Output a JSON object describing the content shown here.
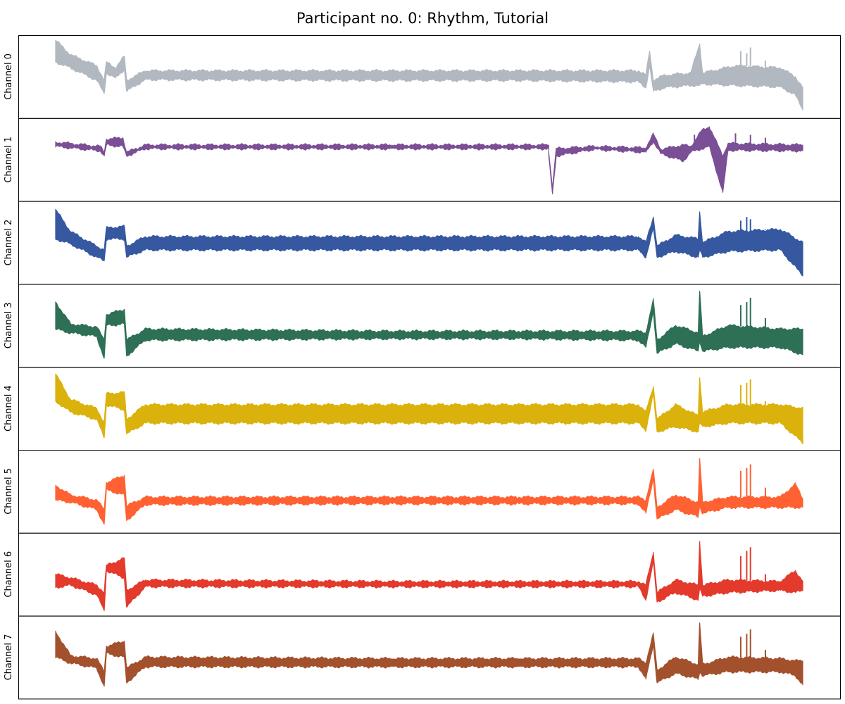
{
  "title": "Participant no. 0: Rhythm, Tutorial",
  "chart_data": {
    "type": "line",
    "title": "Participant no. 0: Rhythm, Tutorial",
    "layout": "8 vertically stacked panels, shared x axis, no ticks, no grid, no legend",
    "grid": false,
    "xlim": [
      0,
      1
    ],
    "series": [
      {
        "name": "Channel 0",
        "color": "#b2b8c0",
        "band": [
          [
            0.0,
            0.7,
            1.0
          ],
          [
            0.02,
            0.62,
            0.8
          ],
          [
            0.055,
            0.45,
            0.65
          ],
          [
            0.065,
            0.27,
            0.45
          ],
          [
            0.068,
            0.55,
            0.7
          ],
          [
            0.08,
            0.48,
            0.62
          ],
          [
            0.092,
            0.6,
            0.78
          ],
          [
            0.095,
            0.3,
            0.45
          ],
          [
            0.12,
            0.46,
            0.58
          ],
          [
            0.45,
            0.45,
            0.58
          ],
          [
            0.62,
            0.45,
            0.58
          ],
          [
            0.78,
            0.43,
            0.58
          ],
          [
            0.79,
            0.35,
            0.52
          ],
          [
            0.795,
            0.65,
            0.85
          ],
          [
            0.8,
            0.3,
            0.45
          ],
          [
            0.815,
            0.35,
            0.52
          ],
          [
            0.85,
            0.38,
            0.55
          ],
          [
            0.862,
            0.38,
            0.95
          ],
          [
            0.866,
            0.4,
            0.55
          ],
          [
            0.91,
            0.38,
            0.65
          ],
          [
            0.97,
            0.36,
            0.62
          ],
          [
            0.99,
            0.25,
            0.5
          ],
          [
            1.0,
            0.05,
            0.35
          ]
        ],
        "spikes": [
          [
            0.917,
            0.85
          ],
          [
            0.925,
            0.82
          ],
          [
            0.93,
            0.9
          ],
          [
            0.95,
            0.72
          ]
        ]
      },
      {
        "name": "Channel 1",
        "color": "#7b4f95",
        "band": [
          [
            0.0,
            0.68,
            0.74
          ],
          [
            0.06,
            0.62,
            0.68
          ],
          [
            0.065,
            0.55,
            0.6
          ],
          [
            0.068,
            0.7,
            0.78
          ],
          [
            0.09,
            0.68,
            0.8
          ],
          [
            0.095,
            0.55,
            0.6
          ],
          [
            0.12,
            0.65,
            0.7
          ],
          [
            0.45,
            0.65,
            0.7
          ],
          [
            0.66,
            0.65,
            0.7
          ],
          [
            0.66,
            0.55,
            0.6
          ],
          [
            0.665,
            0.03,
            0.12
          ],
          [
            0.67,
            0.55,
            0.65
          ],
          [
            0.72,
            0.64,
            0.68
          ],
          [
            0.79,
            0.6,
            0.66
          ],
          [
            0.8,
            0.75,
            0.85
          ],
          [
            0.81,
            0.58,
            0.64
          ],
          [
            0.84,
            0.48,
            0.7
          ],
          [
            0.85,
            0.6,
            0.68
          ],
          [
            0.865,
            0.65,
            0.9
          ],
          [
            0.875,
            0.68,
            0.95
          ],
          [
            0.893,
            0.05,
            0.55
          ],
          [
            0.9,
            0.63,
            0.72
          ],
          [
            1.0,
            0.62,
            0.7
          ]
        ],
        "spikes": [
          [
            0.855,
            0.84
          ],
          [
            0.91,
            0.86
          ],
          [
            0.93,
            0.84
          ],
          [
            0.95,
            0.8
          ]
        ]
      },
      {
        "name": "Channel 2",
        "color": "#3558a0",
        "band": [
          [
            0.0,
            0.55,
            0.95
          ],
          [
            0.02,
            0.48,
            0.65
          ],
          [
            0.055,
            0.3,
            0.45
          ],
          [
            0.065,
            0.25,
            0.4
          ],
          [
            0.068,
            0.55,
            0.7
          ],
          [
            0.092,
            0.55,
            0.72
          ],
          [
            0.095,
            0.3,
            0.45
          ],
          [
            0.12,
            0.4,
            0.58
          ],
          [
            0.62,
            0.4,
            0.58
          ],
          [
            0.78,
            0.4,
            0.58
          ],
          [
            0.79,
            0.3,
            0.5
          ],
          [
            0.8,
            0.7,
            0.85
          ],
          [
            0.805,
            0.3,
            0.45
          ],
          [
            0.83,
            0.38,
            0.6
          ],
          [
            0.86,
            0.3,
            0.55
          ],
          [
            0.862,
            0.4,
            0.92
          ],
          [
            0.866,
            0.3,
            0.5
          ],
          [
            0.9,
            0.38,
            0.65
          ],
          [
            0.97,
            0.4,
            0.68
          ],
          [
            1.0,
            0.05,
            0.5
          ]
        ],
        "spikes": [
          [
            0.917,
            0.8
          ],
          [
            0.925,
            0.85
          ],
          [
            0.93,
            0.82
          ],
          [
            0.95,
            0.68
          ]
        ]
      },
      {
        "name": "Channel 3",
        "color": "#2e7055",
        "band": [
          [
            0.0,
            0.45,
            0.82
          ],
          [
            0.02,
            0.4,
            0.52
          ],
          [
            0.055,
            0.35,
            0.48
          ],
          [
            0.065,
            0.05,
            0.3
          ],
          [
            0.068,
            0.5,
            0.65
          ],
          [
            0.092,
            0.52,
            0.72
          ],
          [
            0.095,
            0.08,
            0.3
          ],
          [
            0.12,
            0.3,
            0.45
          ],
          [
            0.45,
            0.32,
            0.42
          ],
          [
            0.62,
            0.32,
            0.42
          ],
          [
            0.78,
            0.3,
            0.42
          ],
          [
            0.79,
            0.2,
            0.4
          ],
          [
            0.8,
            0.7,
            0.85
          ],
          [
            0.805,
            0.12,
            0.3
          ],
          [
            0.83,
            0.25,
            0.5
          ],
          [
            0.86,
            0.15,
            0.4
          ],
          [
            0.862,
            0.3,
            0.97
          ],
          [
            0.866,
            0.15,
            0.35
          ],
          [
            0.9,
            0.2,
            0.5
          ],
          [
            0.97,
            0.2,
            0.45
          ],
          [
            1.0,
            0.1,
            0.45
          ]
        ],
        "spikes": [
          [
            0.917,
            0.78
          ],
          [
            0.925,
            0.82
          ],
          [
            0.93,
            0.88
          ],
          [
            0.95,
            0.6
          ]
        ]
      },
      {
        "name": "Channel 4",
        "color": "#dbb10c",
        "band": [
          [
            0.0,
            0.6,
            0.97
          ],
          [
            0.02,
            0.45,
            0.62
          ],
          [
            0.055,
            0.35,
            0.5
          ],
          [
            0.065,
            0.1,
            0.3
          ],
          [
            0.068,
            0.55,
            0.7
          ],
          [
            0.092,
            0.48,
            0.72
          ],
          [
            0.095,
            0.15,
            0.35
          ],
          [
            0.12,
            0.3,
            0.55
          ],
          [
            0.62,
            0.3,
            0.55
          ],
          [
            0.78,
            0.3,
            0.55
          ],
          [
            0.79,
            0.2,
            0.45
          ],
          [
            0.8,
            0.7,
            0.8
          ],
          [
            0.805,
            0.18,
            0.35
          ],
          [
            0.83,
            0.25,
            0.55
          ],
          [
            0.86,
            0.18,
            0.4
          ],
          [
            0.862,
            0.3,
            0.92
          ],
          [
            0.866,
            0.25,
            0.45
          ],
          [
            0.9,
            0.3,
            0.55
          ],
          [
            0.97,
            0.3,
            0.55
          ],
          [
            1.0,
            0.03,
            0.5
          ]
        ],
        "spikes": [
          [
            0.917,
            0.82
          ],
          [
            0.925,
            0.85
          ],
          [
            0.93,
            0.9
          ],
          [
            0.95,
            0.6
          ]
        ]
      },
      {
        "name": "Channel 5",
        "color": "#ff6133",
        "band": [
          [
            0.0,
            0.38,
            0.58
          ],
          [
            0.02,
            0.35,
            0.45
          ],
          [
            0.055,
            0.25,
            0.38
          ],
          [
            0.065,
            0.05,
            0.25
          ],
          [
            0.068,
            0.52,
            0.62
          ],
          [
            0.092,
            0.45,
            0.72
          ],
          [
            0.095,
            0.1,
            0.3
          ],
          [
            0.12,
            0.32,
            0.42
          ],
          [
            0.45,
            0.33,
            0.42
          ],
          [
            0.62,
            0.33,
            0.42
          ],
          [
            0.78,
            0.33,
            0.42
          ],
          [
            0.79,
            0.2,
            0.38
          ],
          [
            0.8,
            0.68,
            0.8
          ],
          [
            0.805,
            0.12,
            0.28
          ],
          [
            0.83,
            0.25,
            0.45
          ],
          [
            0.86,
            0.15,
            0.35
          ],
          [
            0.862,
            0.3,
            0.95
          ],
          [
            0.866,
            0.2,
            0.35
          ],
          [
            0.9,
            0.28,
            0.42
          ],
          [
            0.97,
            0.28,
            0.42
          ],
          [
            0.99,
            0.28,
            0.6
          ],
          [
            1.0,
            0.28,
            0.4
          ]
        ],
        "spikes": [
          [
            0.917,
            0.78
          ],
          [
            0.925,
            0.82
          ],
          [
            0.93,
            0.87
          ],
          [
            0.95,
            0.55
          ]
        ]
      },
      {
        "name": "Channel 6",
        "color": "#e33a2c",
        "band": [
          [
            0.0,
            0.32,
            0.5
          ],
          [
            0.02,
            0.35,
            0.45
          ],
          [
            0.055,
            0.22,
            0.35
          ],
          [
            0.065,
            0.0,
            0.25
          ],
          [
            0.068,
            0.55,
            0.62
          ],
          [
            0.092,
            0.45,
            0.72
          ],
          [
            0.095,
            0.05,
            0.28
          ],
          [
            0.12,
            0.33,
            0.42
          ],
          [
            0.45,
            0.33,
            0.4
          ],
          [
            0.62,
            0.33,
            0.4
          ],
          [
            0.78,
            0.33,
            0.4
          ],
          [
            0.79,
            0.15,
            0.35
          ],
          [
            0.8,
            0.68,
            0.8
          ],
          [
            0.805,
            0.12,
            0.25
          ],
          [
            0.83,
            0.25,
            0.42
          ],
          [
            0.86,
            0.15,
            0.35
          ],
          [
            0.862,
            0.3,
            0.95
          ],
          [
            0.866,
            0.2,
            0.35
          ],
          [
            0.9,
            0.25,
            0.42
          ],
          [
            0.97,
            0.28,
            0.4
          ],
          [
            0.99,
            0.25,
            0.55
          ],
          [
            1.0,
            0.28,
            0.4
          ]
        ],
        "spikes": [
          [
            0.917,
            0.75
          ],
          [
            0.925,
            0.82
          ],
          [
            0.93,
            0.87
          ],
          [
            0.95,
            0.5
          ]
        ]
      },
      {
        "name": "Channel 7",
        "color": "#a3512d",
        "band": [
          [
            0.0,
            0.5,
            0.85
          ],
          [
            0.02,
            0.42,
            0.52
          ],
          [
            0.055,
            0.35,
            0.48
          ],
          [
            0.065,
            0.1,
            0.3
          ],
          [
            0.068,
            0.55,
            0.65
          ],
          [
            0.092,
            0.5,
            0.72
          ],
          [
            0.095,
            0.15,
            0.35
          ],
          [
            0.12,
            0.37,
            0.5
          ],
          [
            0.45,
            0.37,
            0.48
          ],
          [
            0.62,
            0.37,
            0.48
          ],
          [
            0.78,
            0.37,
            0.48
          ],
          [
            0.79,
            0.2,
            0.42
          ],
          [
            0.8,
            0.68,
            0.82
          ],
          [
            0.805,
            0.15,
            0.32
          ],
          [
            0.83,
            0.28,
            0.5
          ],
          [
            0.86,
            0.2,
            0.4
          ],
          [
            0.862,
            0.3,
            0.97
          ],
          [
            0.866,
            0.25,
            0.4
          ],
          [
            0.9,
            0.3,
            0.5
          ],
          [
            0.97,
            0.3,
            0.48
          ],
          [
            0.99,
            0.25,
            0.45
          ],
          [
            1.0,
            0.12,
            0.45
          ]
        ],
        "spikes": [
          [
            0.917,
            0.78
          ],
          [
            0.925,
            0.82
          ],
          [
            0.93,
            0.88
          ],
          [
            0.95,
            0.6
          ]
        ]
      }
    ]
  }
}
